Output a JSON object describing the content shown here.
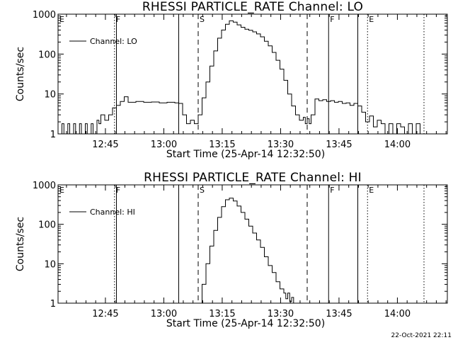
{
  "footer": {
    "timestamp": "22-Oct-2021 22:11"
  },
  "chart_data": [
    {
      "type": "line",
      "title": "RHESSI PARTICLE_RATE Channel: LO",
      "xlabel": "Start Time (25-Apr-14 12:32:50)",
      "ylabel": "Counts/sec",
      "yscale": "log",
      "ylim": [
        1,
        1000
      ],
      "xlim_minutes": [
        0,
        100
      ],
      "x_ticks": [
        "12:45",
        "13:00",
        "13:15",
        "13:30",
        "13:45",
        "14:00"
      ],
      "y_ticks": [
        "1",
        "10",
        "100",
        "1000"
      ],
      "legend": {
        "label": "Channel: LO",
        "placement": "top-left"
      },
      "markers": [
        {
          "minute": 0.0,
          "label": "E",
          "style": "dotted"
        },
        {
          "minute": 14.5,
          "label": "F",
          "style": "dotted"
        },
        {
          "minute": 15.0,
          "label": "",
          "style": "solid"
        },
        {
          "minute": 31.0,
          "label": "",
          "style": "solid"
        },
        {
          "minute": 36.0,
          "label": "S",
          "style": "dashed"
        },
        {
          "minute": 64.0,
          "label": "",
          "style": "dashed"
        },
        {
          "minute": 69.5,
          "label": "F",
          "style": "solid"
        },
        {
          "minute": 77.0,
          "label": "",
          "style": "solid"
        },
        {
          "minute": 79.5,
          "label": "E",
          "style": "dotted"
        },
        {
          "minute": 94.0,
          "label": "",
          "style": "dotted"
        }
      ],
      "grid": false,
      "series": [
        {
          "name": "Channel: LO",
          "x": [
            0,
            1,
            1.5,
            2.5,
            3,
            4,
            4.5,
            5.5,
            6,
            7,
            7.5,
            8.5,
            9,
            10,
            10.5,
            11,
            12,
            13,
            14,
            15,
            16,
            17,
            18,
            20,
            22,
            24,
            26,
            28,
            30,
            31,
            32,
            33,
            34,
            35,
            36,
            37,
            38,
            39,
            40,
            41,
            42,
            43,
            44,
            45,
            46,
            47,
            48,
            49,
            50,
            51,
            52,
            53,
            54,
            55,
            56,
            57,
            58,
            59,
            60,
            61,
            62,
            63,
            63.5,
            64,
            64.5,
            65,
            66,
            67,
            68,
            69,
            70,
            71,
            72,
            73,
            74,
            75,
            76,
            77,
            78,
            79,
            80,
            81,
            82,
            83,
            84,
            85,
            86,
            87,
            88,
            89,
            90,
            91,
            92,
            93,
            94
          ],
          "y": [
            1,
            1.8,
            1,
            1.8,
            1,
            1.8,
            1,
            1.8,
            1,
            1.8,
            1,
            1.8,
            1,
            2.2,
            1.8,
            3,
            2.2,
            3,
            4.5,
            5.2,
            6.5,
            8.5,
            6.2,
            6.5,
            6.2,
            6.3,
            6.0,
            6.2,
            6.0,
            5.8,
            3,
            1.8,
            2.2,
            1.8,
            3,
            8,
            20,
            50,
            120,
            250,
            400,
            560,
            680,
            630,
            540,
            470,
            420,
            395,
            360,
            320,
            270,
            210,
            160,
            110,
            70,
            42,
            22,
            10,
            5,
            3,
            2.2,
            2.6,
            1.8,
            2.4,
            1.8,
            3,
            7.5,
            6.8,
            7.2,
            6.5,
            6.8,
            6.2,
            6.5,
            5.8,
            6.0,
            5.2,
            5.8,
            5.0,
            3.5,
            2.0,
            2.8,
            1.5,
            2.2,
            1.8,
            1.0,
            1.8,
            1.0,
            1.8,
            1.5,
            1.0,
            1.8,
            1.0,
            1.8,
            1.0,
            1.0
          ]
        }
      ]
    },
    {
      "type": "line",
      "title": "RHESSI PARTICLE_RATE Channel: HI",
      "xlabel": "Start Time (25-Apr-14 12:32:50)",
      "ylabel": "Counts/sec",
      "yscale": "log",
      "ylim": [
        1,
        1000
      ],
      "xlim_minutes": [
        0,
        100
      ],
      "x_ticks": [
        "12:45",
        "13:00",
        "13:15",
        "13:30",
        "13:45",
        "14:00"
      ],
      "y_ticks": [
        "1",
        "10",
        "100",
        "1000"
      ],
      "legend": {
        "label": "Channel: HI",
        "placement": "top-left"
      },
      "markers": [
        {
          "minute": 0.0,
          "label": "E",
          "style": "dotted"
        },
        {
          "minute": 14.5,
          "label": "F",
          "style": "dotted"
        },
        {
          "minute": 15.0,
          "label": "",
          "style": "solid"
        },
        {
          "minute": 31.0,
          "label": "",
          "style": "solid"
        },
        {
          "minute": 36.0,
          "label": "S",
          "style": "dashed"
        },
        {
          "minute": 64.0,
          "label": "",
          "style": "dashed"
        },
        {
          "minute": 69.5,
          "label": "F",
          "style": "solid"
        },
        {
          "minute": 77.0,
          "label": "",
          "style": "solid"
        },
        {
          "minute": 79.5,
          "label": "E",
          "style": "dotted"
        },
        {
          "minute": 94.0,
          "label": "",
          "style": "dotted"
        }
      ],
      "grid": false,
      "series": [
        {
          "name": "Channel: HI",
          "x": [
            36,
            37,
            38,
            39,
            40,
            41,
            42,
            43,
            44,
            45,
            46,
            47,
            48,
            49,
            50,
            51,
            52,
            53,
            54,
            55,
            56,
            57,
            58,
            58.5,
            59,
            59.5,
            60,
            60.5,
            61
          ],
          "y": [
            1,
            3,
            10,
            28,
            70,
            150,
            280,
            420,
            460,
            390,
            290,
            200,
            135,
            90,
            60,
            40,
            26,
            15,
            9,
            6,
            3.5,
            2.3,
            1.8,
            1.3,
            1.8,
            1.1,
            1.4,
            1.0,
            1.0
          ]
        }
      ]
    }
  ]
}
